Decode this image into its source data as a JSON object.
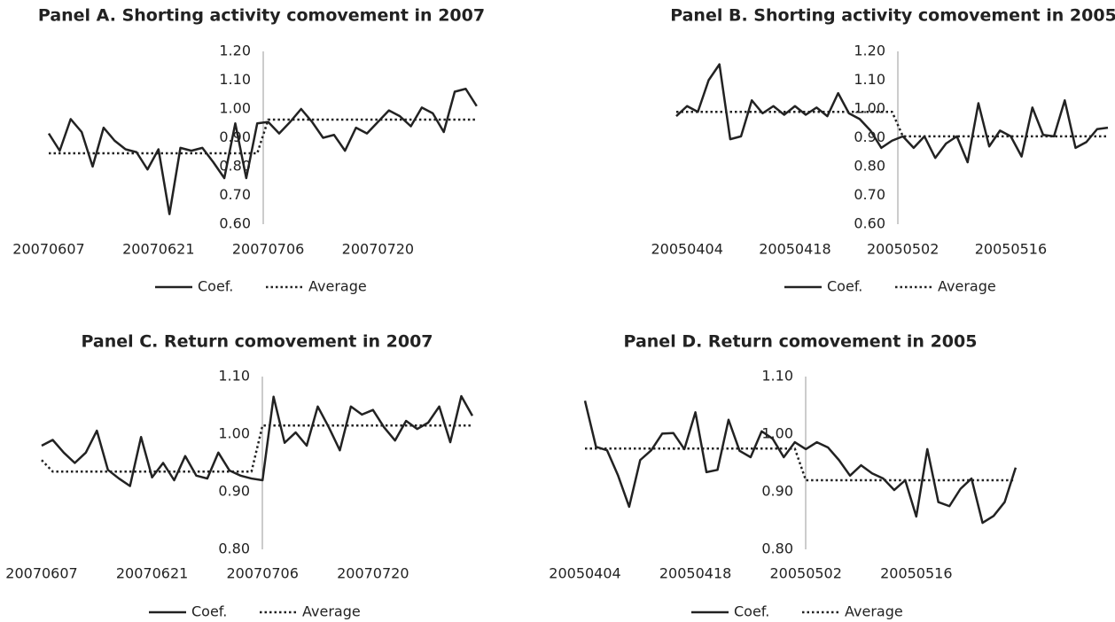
{
  "chart_data": [
    {
      "type": "line",
      "title": "Panel A. Shorting activity comovement in 2007",
      "categories": [
        "20070607",
        null,
        null,
        null,
        null,
        null,
        null,
        null,
        null,
        null,
        "20070621",
        null,
        null,
        null,
        null,
        null,
        null,
        null,
        null,
        null,
        "20070706",
        null,
        null,
        null,
        null,
        null,
        null,
        null,
        null,
        null,
        "20070720",
        null,
        null,
        null,
        null,
        null,
        null,
        null,
        null,
        null
      ],
      "series": [
        {
          "name": "Coef.",
          "color": "#222222",
          "style": "solid",
          "values": [
            0.915,
            0.855,
            0.965,
            0.92,
            0.8,
            0.935,
            0.89,
            0.86,
            0.85,
            0.79,
            0.86,
            0.635,
            0.865,
            0.855,
            0.865,
            0.815,
            0.76,
            0.95,
            0.76,
            0.95,
            0.955,
            0.915,
            0.955,
            1.0,
            0.955,
            0.9,
            0.91,
            0.855,
            0.935,
            0.915,
            0.955,
            0.995,
            0.975,
            0.94,
            1.005,
            0.985,
            0.92,
            1.06,
            1.07,
            1.01
          ]
        },
        {
          "name": "Average",
          "color": "#222222",
          "style": "dotted",
          "values": [
            0.846,
            0.846,
            0.846,
            0.846,
            0.846,
            0.846,
            0.846,
            0.846,
            0.846,
            0.846,
            0.846,
            0.846,
            0.846,
            0.846,
            0.846,
            0.846,
            0.846,
            0.846,
            0.846,
            0.846,
            0.963,
            0.963,
            0.963,
            0.963,
            0.963,
            0.963,
            0.963,
            0.963,
            0.963,
            0.963,
            0.963,
            0.963,
            0.963,
            0.963,
            0.963,
            0.963,
            0.963,
            0.963,
            0.963,
            0.963
          ]
        }
      ],
      "ylim": [
        0.6,
        1.2
      ],
      "yticks": [
        {
          "value": 0.6,
          "label": "0.60"
        },
        {
          "value": 0.7,
          "label": "0.70"
        },
        {
          "value": 0.8,
          "label": "0.80"
        },
        {
          "value": 0.9,
          "label": "0.90"
        },
        {
          "value": 1.0,
          "label": "1.00"
        },
        {
          "value": 1.1,
          "label": "1.10"
        },
        {
          "value": 1.2,
          "label": "1.20"
        }
      ],
      "grid": false,
      "legend": "bottom"
    },
    {
      "type": "line",
      "title": "Panel B. Shorting activity comovement in 2005",
      "categories": [
        null,
        "20050404",
        null,
        null,
        null,
        null,
        null,
        null,
        null,
        null,
        null,
        "20050418",
        null,
        null,
        null,
        null,
        null,
        null,
        null,
        null,
        null,
        "20050502",
        null,
        null,
        null,
        null,
        null,
        null,
        null,
        null,
        null,
        "20050516",
        null,
        null,
        null,
        null,
        null,
        null,
        null,
        null,
        null
      ],
      "series": [
        {
          "name": "Coef.",
          "color": "#222222",
          "style": "solid",
          "values": [
            0.975,
            1.01,
            0.99,
            1.1,
            1.155,
            0.895,
            0.905,
            1.03,
            0.985,
            1.01,
            0.98,
            1.01,
            0.98,
            1.005,
            0.975,
            1.055,
            0.985,
            0.965,
            0.925,
            0.865,
            0.89,
            0.905,
            0.865,
            0.905,
            0.83,
            0.88,
            0.905,
            0.815,
            1.02,
            0.87,
            0.925,
            0.905,
            0.835,
            1.005,
            0.91,
            0.905,
            1.03,
            0.865,
            0.885,
            0.93,
            0.935
          ]
        },
        {
          "name": "Average",
          "color": "#222222",
          "style": "dotted",
          "values": [
            0.99,
            0.99,
            0.99,
            0.99,
            0.99,
            0.99,
            0.99,
            0.99,
            0.99,
            0.99,
            0.99,
            0.99,
            0.99,
            0.99,
            0.99,
            0.99,
            0.99,
            0.99,
            0.99,
            0.99,
            0.99,
            0.905,
            0.905,
            0.905,
            0.905,
            0.905,
            0.905,
            0.905,
            0.905,
            0.905,
            0.905,
            0.905,
            0.905,
            0.905,
            0.905,
            0.905,
            0.905,
            0.905,
            0.905,
            0.905,
            0.905
          ]
        }
      ],
      "ylim": [
        0.6,
        1.2
      ],
      "yticks": [
        {
          "value": 0.6,
          "label": "0.60"
        },
        {
          "value": 0.7,
          "label": "0.70"
        },
        {
          "value": 0.8,
          "label": "0.80"
        },
        {
          "value": 0.9,
          "label": "0.90"
        },
        {
          "value": 1.0,
          "label": "1.00"
        },
        {
          "value": 1.1,
          "label": "1.10"
        },
        {
          "value": 1.2,
          "label": "1.20"
        }
      ],
      "grid": false,
      "legend": "bottom"
    },
    {
      "type": "line",
      "title": "Panel C. Return comovement in 2007",
      "categories": [
        "20070607",
        null,
        null,
        null,
        null,
        null,
        null,
        null,
        null,
        null,
        "20070621",
        null,
        null,
        null,
        null,
        null,
        null,
        null,
        null,
        null,
        "20070706",
        null,
        null,
        null,
        null,
        null,
        null,
        null,
        null,
        null,
        "20070720",
        null,
        null,
        null,
        null,
        null,
        null,
        null,
        null,
        null
      ],
      "series": [
        {
          "name": "Coef.",
          "color": "#222222",
          "style": "solid",
          "values": [
            0.98,
            0.99,
            0.968,
            0.95,
            0.968,
            1.006,
            0.938,
            0.923,
            0.91,
            0.995,
            0.925,
            0.95,
            0.92,
            0.962,
            0.928,
            0.923,
            0.968,
            0.937,
            0.928,
            0.923,
            0.92,
            1.065,
            0.985,
            1.003,
            0.98,
            1.048,
            1.012,
            0.972,
            1.048,
            1.034,
            1.042,
            1.012,
            0.989,
            1.023,
            1.009,
            1.02,
            1.048,
            0.986,
            1.066,
            1.032
          ]
        },
        {
          "name": "Average",
          "color": "#222222",
          "style": "dotted",
          "values": [
            0.955,
            0.935,
            0.935,
            0.935,
            0.935,
            0.935,
            0.935,
            0.935,
            0.935,
            0.935,
            0.935,
            0.935,
            0.935,
            0.935,
            0.935,
            0.935,
            0.935,
            0.935,
            0.935,
            0.935,
            1.015,
            1.015,
            1.015,
            1.015,
            1.015,
            1.015,
            1.015,
            1.015,
            1.015,
            1.015,
            1.015,
            1.015,
            1.015,
            1.015,
            1.015,
            1.015,
            1.015,
            1.015,
            1.015,
            1.015
          ]
        }
      ],
      "ylim": [
        0.8,
        1.1
      ],
      "yticks": [
        {
          "value": 0.8,
          "label": "0.80"
        },
        {
          "value": 0.9,
          "label": "0.90"
        },
        {
          "value": 1.0,
          "label": "1.00"
        },
        {
          "value": 1.1,
          "label": "1.10"
        }
      ],
      "grid": false,
      "legend": "bottom"
    },
    {
      "type": "line",
      "title": "Panel D. Return comovement in 2005",
      "categories": [
        "20050404",
        null,
        null,
        null,
        null,
        null,
        null,
        null,
        null,
        null,
        "20050418",
        null,
        null,
        null,
        null,
        null,
        null,
        null,
        null,
        null,
        "20050502",
        null,
        null,
        null,
        null,
        null,
        null,
        null,
        null,
        null,
        "20050516",
        null,
        null,
        null,
        null,
        null,
        null,
        null,
        null,
        null
      ],
      "series": [
        {
          "name": "Coef.",
          "color": "#222222",
          "style": "solid",
          "values": [
            1.058,
            0.978,
            0.972,
            0.928,
            0.874,
            0.955,
            0.972,
            1.001,
            1.002,
            0.974,
            1.038,
            0.934,
            0.938,
            1.025,
            0.971,
            0.96,
            1.005,
            0.992,
            0.96,
            0.986,
            0.974,
            0.986,
            0.977,
            0.955,
            0.928,
            0.946,
            0.932,
            0.923,
            0.903,
            0.92,
            0.857,
            0.974,
            0.882,
            0.875,
            0.905,
            0.923,
            0.846,
            0.858,
            0.882,
            0.942
          ]
        },
        {
          "name": "Average",
          "color": "#222222",
          "style": "dotted",
          "values": [
            0.975,
            0.975,
            0.975,
            0.975,
            0.975,
            0.975,
            0.975,
            0.975,
            0.975,
            0.975,
            0.975,
            0.975,
            0.975,
            0.975,
            0.975,
            0.975,
            0.975,
            0.975,
            0.975,
            0.975,
            0.92,
            0.92,
            0.92,
            0.92,
            0.92,
            0.92,
            0.92,
            0.92,
            0.92,
            0.92,
            0.92,
            0.92,
            0.92,
            0.92,
            0.92,
            0.92,
            0.92,
            0.92,
            0.92,
            0.92
          ]
        }
      ],
      "ylim": [
        0.8,
        1.1
      ],
      "yticks": [
        {
          "value": 0.8,
          "label": "0.80"
        },
        {
          "value": 0.9,
          "label": "0.90"
        },
        {
          "value": 1.0,
          "label": "1.00"
        },
        {
          "value": 1.1,
          "label": "1.10"
        }
      ],
      "grid": false,
      "legend": "bottom"
    }
  ]
}
